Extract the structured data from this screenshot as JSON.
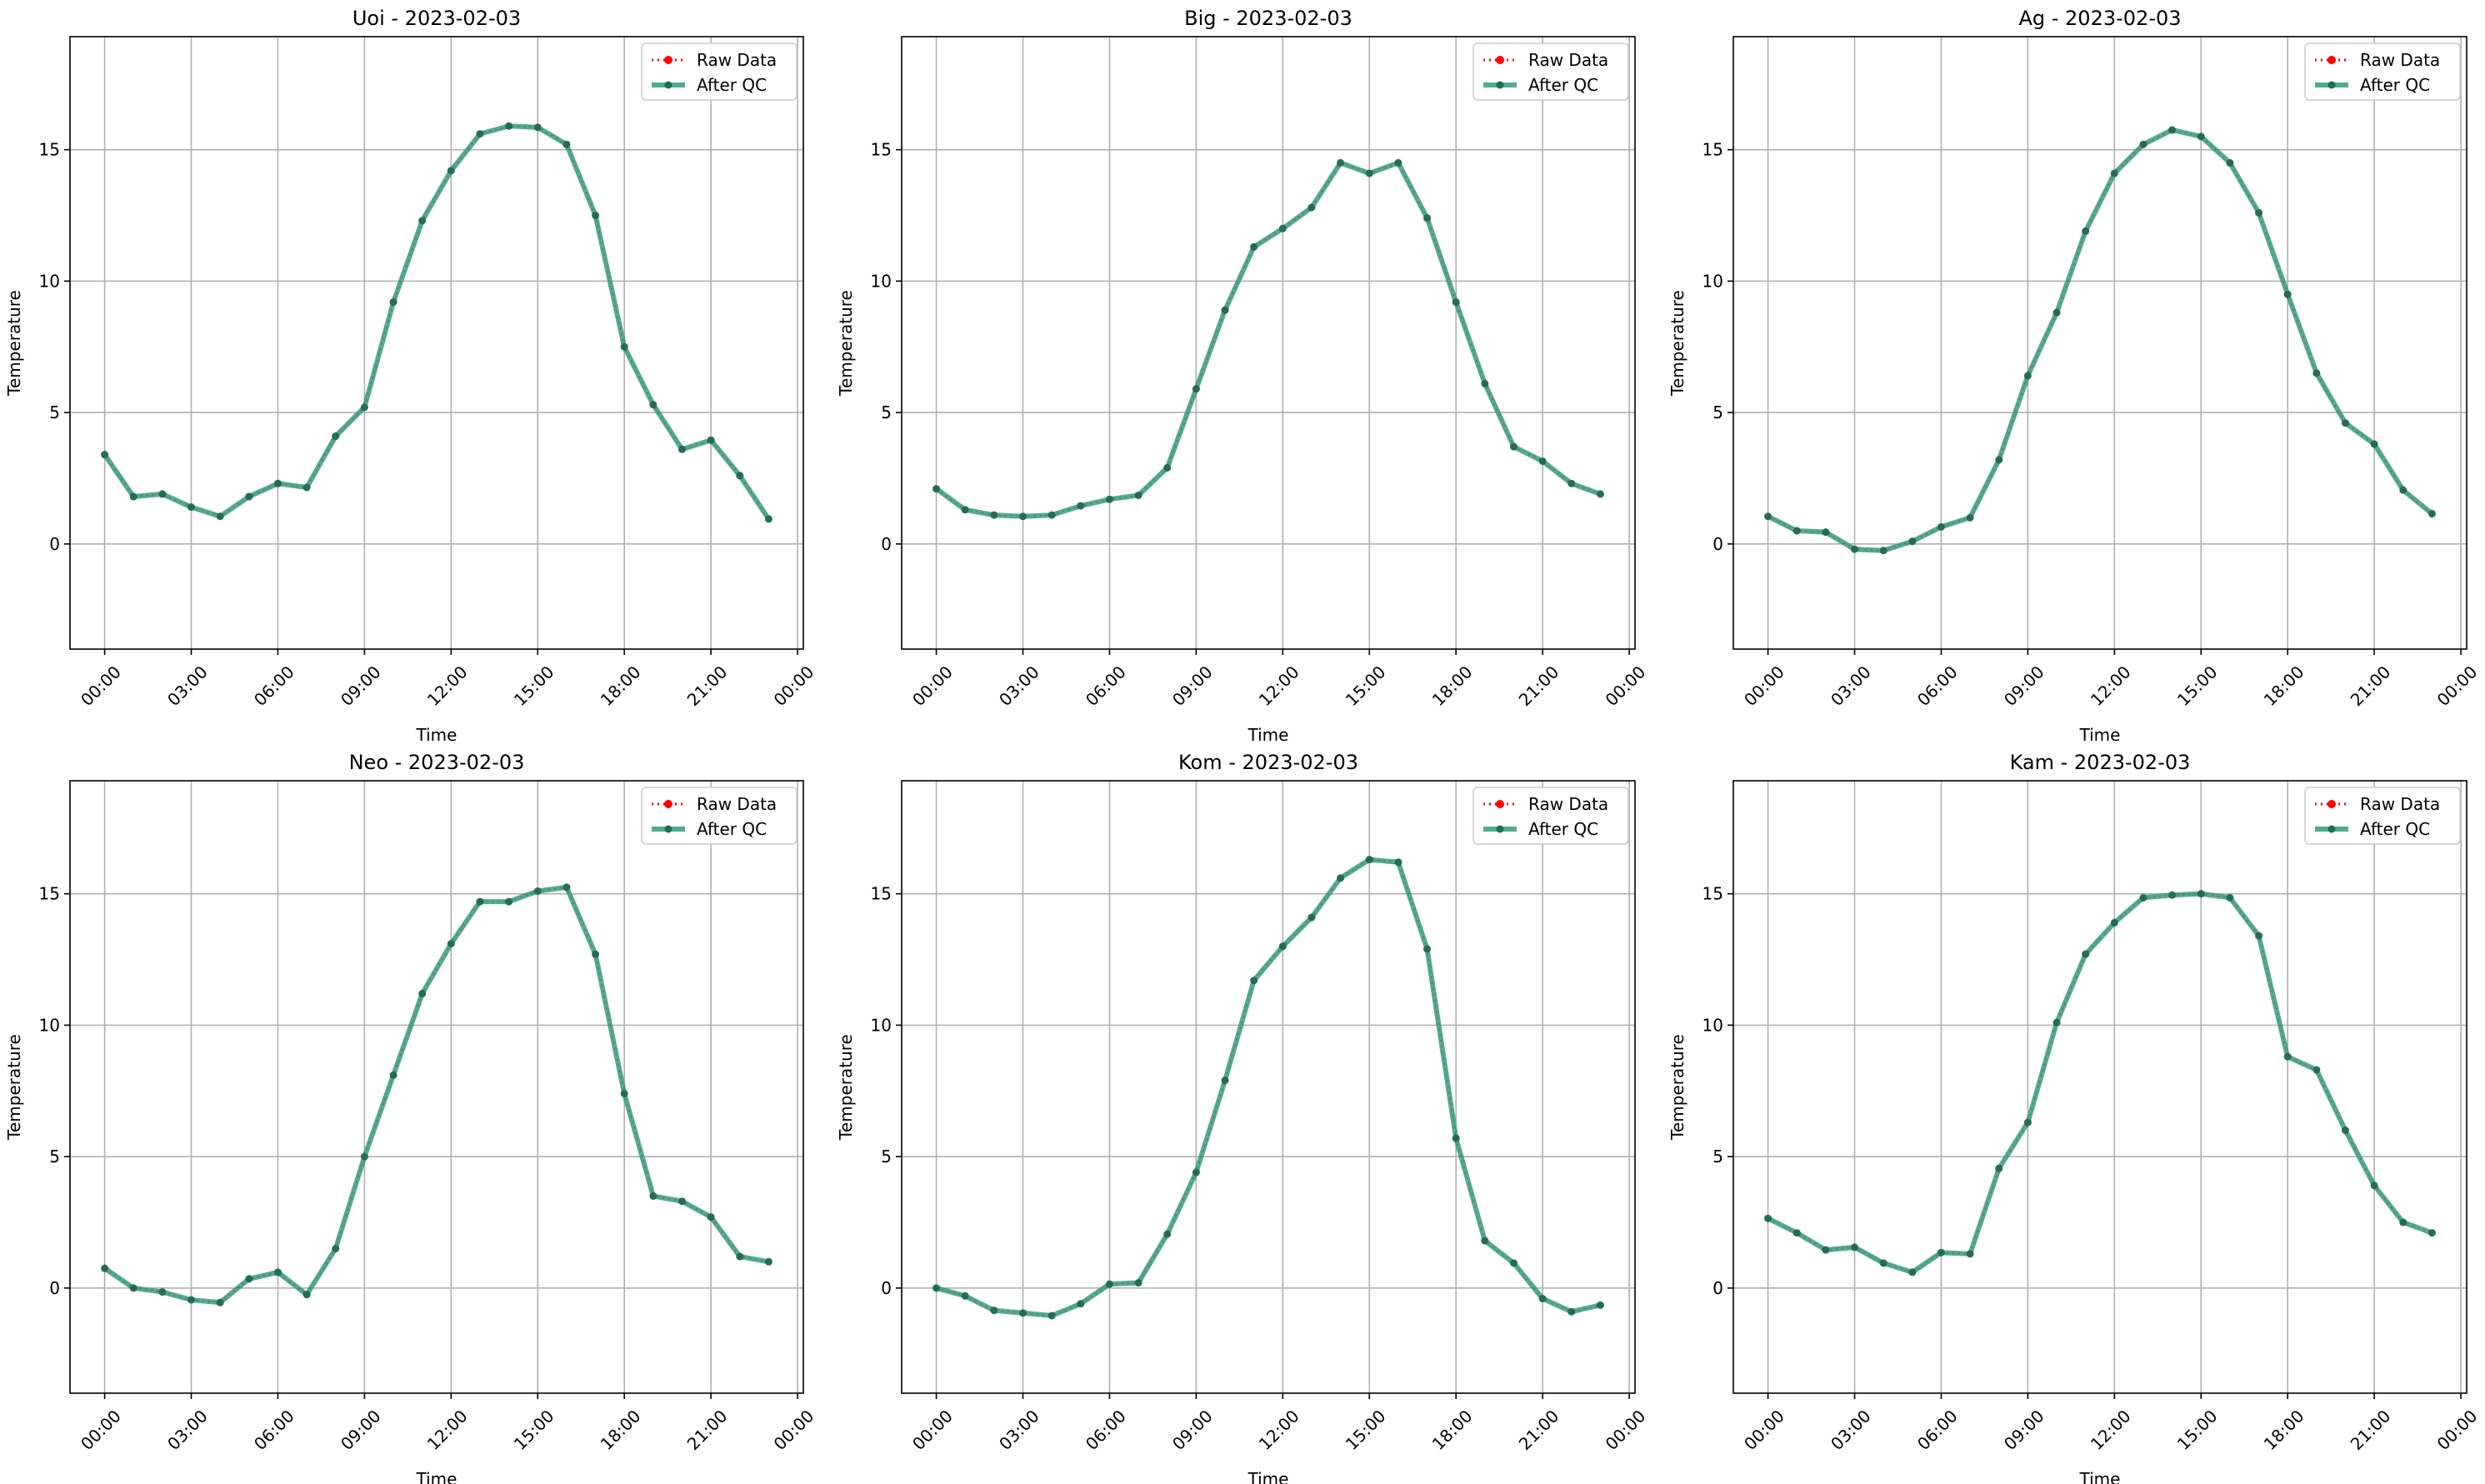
{
  "chart_data": [
    {
      "type": "line",
      "title": "Uoi - 2023-02-03",
      "xlabel": "Time",
      "ylabel": "Temperature",
      "xlim": [
        -1.2,
        24.2
      ],
      "ylim": [
        -4,
        19.3
      ],
      "xticks": [
        0,
        3,
        6,
        9,
        12,
        15,
        18,
        21,
        24
      ],
      "xticklabels": [
        "00:00",
        "03:00",
        "06:00",
        "09:00",
        "12:00",
        "15:00",
        "18:00",
        "21:00",
        "00:00"
      ],
      "yticks": [
        0,
        5,
        10,
        15
      ],
      "grid": true,
      "legend": "upper right",
      "x": [
        0,
        1,
        2,
        3,
        4,
        5,
        6,
        7,
        8,
        9,
        10,
        11,
        12,
        13,
        14,
        15,
        16,
        17,
        18,
        19,
        20,
        21,
        22,
        23
      ],
      "series": [
        {
          "name": "Raw Data",
          "values": [
            3.4,
            1.8,
            1.9,
            1.4,
            1.05,
            1.8,
            2.3,
            2.15,
            4.1,
            5.2,
            9.2,
            12.3,
            14.2,
            15.6,
            15.9,
            15.85,
            15.2,
            12.5,
            7.5,
            5.3,
            3.6,
            3.95,
            2.6,
            0.95
          ]
        },
        {
          "name": "After QC",
          "values": [
            3.4,
            1.8,
            1.9,
            1.4,
            1.05,
            1.8,
            2.3,
            2.15,
            4.1,
            5.2,
            9.2,
            12.3,
            14.2,
            15.6,
            15.9,
            15.85,
            15.2,
            12.5,
            7.5,
            5.3,
            3.6,
            3.95,
            2.6,
            0.95
          ]
        }
      ]
    },
    {
      "type": "line",
      "title": "Big - 2023-02-03",
      "xlabel": "Time",
      "ylabel": "Temperature",
      "xlim": [
        -1.2,
        24.2
      ],
      "ylim": [
        -4,
        19.3
      ],
      "xticks": [
        0,
        3,
        6,
        9,
        12,
        15,
        18,
        21,
        24
      ],
      "xticklabels": [
        "00:00",
        "03:00",
        "06:00",
        "09:00",
        "12:00",
        "15:00",
        "18:00",
        "21:00",
        "00:00"
      ],
      "yticks": [
        0,
        5,
        10,
        15
      ],
      "grid": true,
      "legend": "upper right",
      "x": [
        0,
        1,
        2,
        3,
        4,
        5,
        6,
        7,
        8,
        9,
        10,
        11,
        12,
        13,
        14,
        15,
        16,
        17,
        18,
        19,
        20,
        21,
        22,
        23
      ],
      "series": [
        {
          "name": "Raw Data",
          "values": [
            2.1,
            1.3,
            1.1,
            1.05,
            1.1,
            1.45,
            1.7,
            1.85,
            2.9,
            5.9,
            8.9,
            11.3,
            12.0,
            12.8,
            14.5,
            14.1,
            14.5,
            12.4,
            9.2,
            6.1,
            3.7,
            3.15,
            2.3,
            1.9
          ]
        },
        {
          "name": "After QC",
          "values": [
            2.1,
            1.3,
            1.1,
            1.05,
            1.1,
            1.45,
            1.7,
            1.85,
            2.9,
            5.9,
            8.9,
            11.3,
            12.0,
            12.8,
            14.5,
            14.1,
            14.5,
            12.4,
            9.2,
            6.1,
            3.7,
            3.15,
            2.3,
            1.9
          ]
        }
      ]
    },
    {
      "type": "line",
      "title": "Ag - 2023-02-03",
      "xlabel": "Time",
      "ylabel": "Temperature",
      "xlim": [
        -1.2,
        24.2
      ],
      "ylim": [
        -4,
        19.3
      ],
      "xticks": [
        0,
        3,
        6,
        9,
        12,
        15,
        18,
        21,
        24
      ],
      "xticklabels": [
        "00:00",
        "03:00",
        "06:00",
        "09:00",
        "12:00",
        "15:00",
        "18:00",
        "21:00",
        "00:00"
      ],
      "yticks": [
        0,
        5,
        10,
        15
      ],
      "grid": true,
      "legend": "upper right",
      "x": [
        0,
        1,
        2,
        3,
        4,
        5,
        6,
        7,
        8,
        9,
        10,
        11,
        12,
        13,
        14,
        15,
        16,
        17,
        18,
        19,
        20,
        21,
        22,
        23
      ],
      "series": [
        {
          "name": "Raw Data",
          "values": [
            1.05,
            0.5,
            0.45,
            -0.2,
            -0.25,
            0.1,
            0.65,
            1.0,
            3.2,
            6.4,
            8.8,
            11.9,
            14.1,
            15.2,
            15.75,
            15.5,
            14.5,
            12.6,
            9.5,
            6.5,
            4.6,
            3.8,
            2.05,
            1.15
          ]
        },
        {
          "name": "After QC",
          "values": [
            1.05,
            0.5,
            0.45,
            -0.2,
            -0.25,
            0.1,
            0.65,
            1.0,
            3.2,
            6.4,
            8.8,
            11.9,
            14.1,
            15.2,
            15.75,
            15.5,
            14.5,
            12.6,
            9.5,
            6.5,
            4.6,
            3.8,
            2.05,
            1.15
          ]
        }
      ]
    },
    {
      "type": "line",
      "title": "Neo - 2023-02-03",
      "xlabel": "Time",
      "ylabel": "Temperature",
      "xlim": [
        -1.2,
        24.2
      ],
      "ylim": [
        -4,
        19.3
      ],
      "xticks": [
        0,
        3,
        6,
        9,
        12,
        15,
        18,
        21,
        24
      ],
      "xticklabels": [
        "00:00",
        "03:00",
        "06:00",
        "09:00",
        "12:00",
        "15:00",
        "18:00",
        "21:00",
        "00:00"
      ],
      "yticks": [
        0,
        5,
        10,
        15
      ],
      "grid": true,
      "legend": "upper right",
      "x": [
        0,
        1,
        2,
        3,
        4,
        5,
        6,
        7,
        8,
        9,
        10,
        11,
        12,
        13,
        14,
        15,
        16,
        17,
        18,
        19,
        20,
        21,
        22,
        23
      ],
      "series": [
        {
          "name": "Raw Data",
          "values": [
            0.75,
            0.0,
            -0.15,
            -0.45,
            -0.55,
            0.35,
            0.6,
            -0.25,
            1.5,
            5.0,
            8.1,
            11.2,
            13.1,
            14.7,
            14.7,
            15.1,
            15.25,
            12.7,
            7.4,
            3.5,
            3.3,
            2.7,
            1.2,
            1.0
          ]
        },
        {
          "name": "After QC",
          "values": [
            0.75,
            0.0,
            -0.15,
            -0.45,
            -0.55,
            0.35,
            0.6,
            -0.25,
            1.5,
            5.0,
            8.1,
            11.2,
            13.1,
            14.7,
            14.7,
            15.1,
            15.25,
            12.7,
            7.4,
            3.5,
            3.3,
            2.7,
            1.2,
            1.0
          ]
        }
      ]
    },
    {
      "type": "line",
      "title": "Kom - 2023-02-03",
      "xlabel": "Time",
      "ylabel": "Temperature",
      "xlim": [
        -1.2,
        24.2
      ],
      "ylim": [
        -4,
        19.3
      ],
      "xticks": [
        0,
        3,
        6,
        9,
        12,
        15,
        18,
        21,
        24
      ],
      "xticklabels": [
        "00:00",
        "03:00",
        "06:00",
        "09:00",
        "12:00",
        "15:00",
        "18:00",
        "21:00",
        "00:00"
      ],
      "yticks": [
        0,
        5,
        10,
        15
      ],
      "grid": true,
      "legend": "upper right",
      "x": [
        0,
        1,
        2,
        3,
        4,
        5,
        6,
        7,
        8,
        9,
        10,
        11,
        12,
        13,
        14,
        15,
        16,
        17,
        18,
        19,
        20,
        21,
        22,
        23
      ],
      "series": [
        {
          "name": "Raw Data",
          "values": [
            0.0,
            -0.3,
            -0.85,
            -0.95,
            -1.05,
            -0.6,
            0.15,
            0.2,
            2.05,
            4.4,
            7.9,
            11.7,
            13.0,
            14.1,
            15.6,
            16.3,
            16.2,
            12.9,
            5.7,
            1.8,
            0.95,
            -0.4,
            -0.9,
            -0.65
          ]
        },
        {
          "name": "After QC",
          "values": [
            0.0,
            -0.3,
            -0.85,
            -0.95,
            -1.05,
            -0.6,
            0.15,
            0.2,
            2.05,
            4.4,
            7.9,
            11.7,
            13.0,
            14.1,
            15.6,
            16.3,
            16.2,
            12.9,
            5.7,
            1.8,
            0.95,
            -0.4,
            -0.9,
            -0.65
          ]
        }
      ]
    },
    {
      "type": "line",
      "title": "Kam - 2023-02-03",
      "xlabel": "Time",
      "ylabel": "Temperature",
      "xlim": [
        -1.2,
        24.2
      ],
      "ylim": [
        -4,
        19.3
      ],
      "xticks": [
        0,
        3,
        6,
        9,
        12,
        15,
        18,
        21,
        24
      ],
      "xticklabels": [
        "00:00",
        "03:00",
        "06:00",
        "09:00",
        "12:00",
        "15:00",
        "18:00",
        "21:00",
        "00:00"
      ],
      "yticks": [
        0,
        5,
        10,
        15
      ],
      "grid": true,
      "legend": "upper right",
      "x": [
        0,
        1,
        2,
        3,
        4,
        5,
        6,
        7,
        8,
        9,
        10,
        11,
        12,
        13,
        14,
        15,
        16,
        17,
        18,
        19,
        20,
        21,
        22,
        23
      ],
      "series": [
        {
          "name": "Raw Data",
          "values": [
            2.65,
            2.1,
            1.45,
            1.55,
            0.95,
            0.6,
            1.35,
            1.3,
            4.55,
            6.3,
            10.1,
            12.7,
            13.9,
            14.85,
            14.95,
            15.0,
            14.85,
            13.4,
            8.8,
            8.3,
            6.0,
            3.9,
            2.5,
            2.1
          ]
        },
        {
          "name": "After QC",
          "values": [
            2.65,
            2.1,
            1.45,
            1.55,
            0.95,
            0.6,
            1.35,
            1.3,
            4.55,
            6.3,
            10.1,
            12.7,
            13.9,
            14.85,
            14.95,
            15.0,
            14.85,
            13.4,
            8.8,
            8.3,
            6.0,
            3.9,
            2.5,
            2.1
          ]
        }
      ]
    }
  ],
  "colors": {
    "raw": "#ff0000",
    "qc_line": "#2e9e7e",
    "qc_marker": "#1f6f57",
    "grid": "#b0b0b0"
  }
}
